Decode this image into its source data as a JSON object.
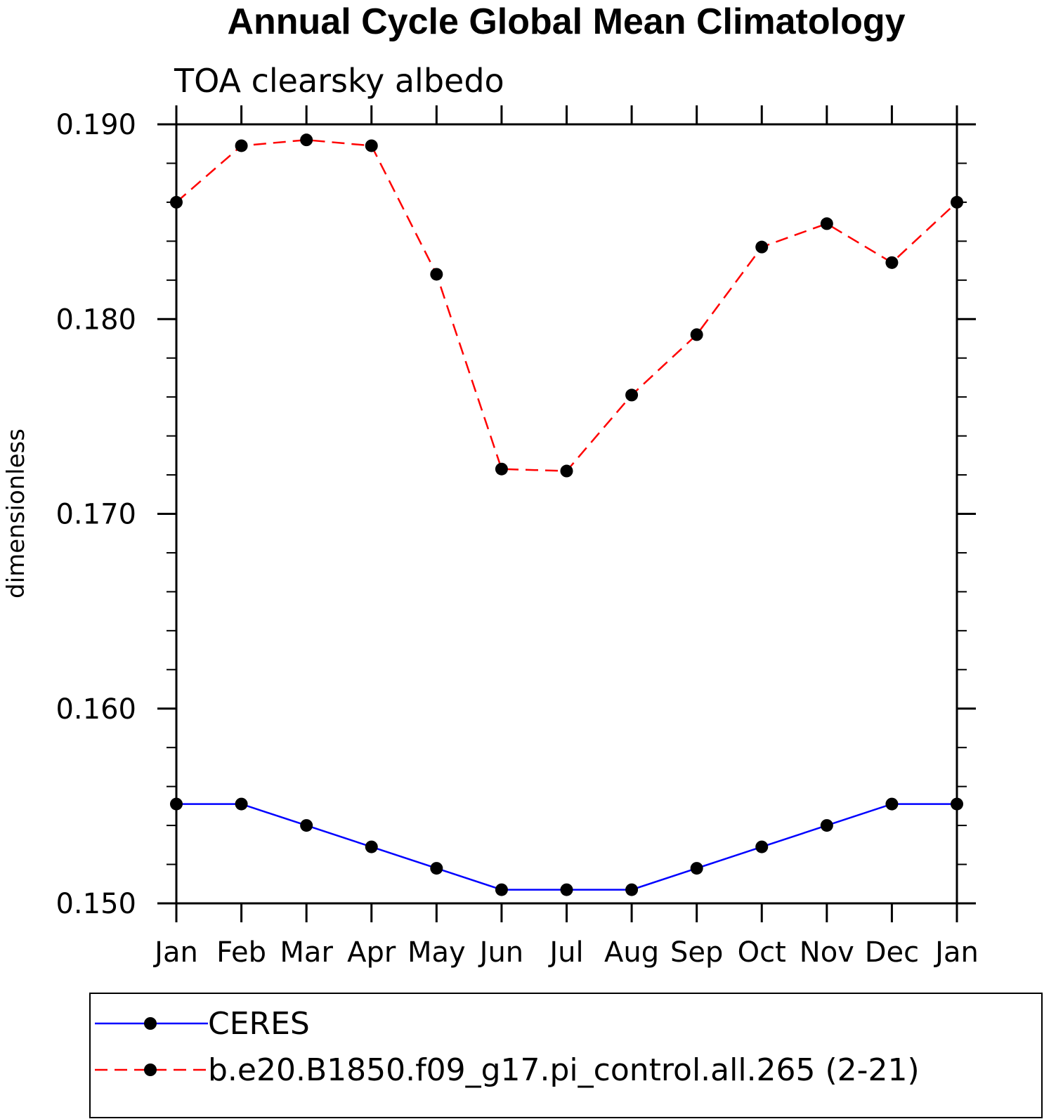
{
  "chart_data": {
    "type": "line",
    "title": "Annual Cycle Global Mean Climatology",
    "subtitle": "TOA clearsky albedo",
    "ylabel": "dimensionless",
    "xlabel": "",
    "categories": [
      "Jan",
      "Feb",
      "Mar",
      "Apr",
      "May",
      "Jun",
      "Jul",
      "Aug",
      "Sep",
      "Oct",
      "Nov",
      "Dec",
      "Jan"
    ],
    "ylim": [
      0.15,
      0.19
    ],
    "yticks": [
      0.15,
      0.16,
      0.17,
      0.18,
      0.19
    ],
    "ytick_labels": [
      "0.150",
      "0.160",
      "0.170",
      "0.180",
      "0.190"
    ],
    "legend_position": "bottom",
    "series": [
      {
        "name": "CERES",
        "color": "#0000ff",
        "line_style": "solid",
        "marker": "circle",
        "values": [
          0.1551,
          0.1551,
          0.154,
          0.1529,
          0.1518,
          0.1507,
          0.1507,
          0.1507,
          0.1518,
          0.1529,
          0.154,
          0.1551,
          0.1551
        ]
      },
      {
        "name": "b.e20.B1850.f09_g17.pi_control.all.265 (2-21)",
        "color": "#ff0000",
        "line_style": "dashed",
        "marker": "circle",
        "values": [
          0.186,
          0.1889,
          0.1892,
          0.1889,
          0.1823,
          0.1723,
          0.1722,
          0.1761,
          0.1792,
          0.1837,
          0.1849,
          0.1829,
          0.186
        ]
      }
    ]
  }
}
